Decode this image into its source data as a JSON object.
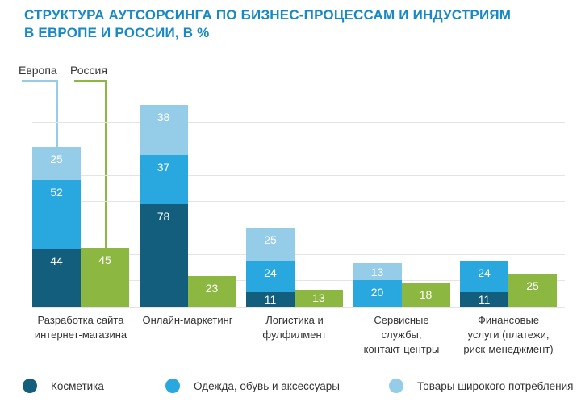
{
  "title": {
    "lines": [
      "СТРУКТУРА АУТСОРСИНГА ПО БИЗНЕС-ПРОЦЕССАМ И ИНДУСТРИЯМ",
      "В ЕВРОПЕ И РОССИИ, В %"
    ]
  },
  "annotations": {
    "europe_label": "Европа",
    "russia_label": "Россия"
  },
  "colors": {
    "cosmetics": "#125e7c",
    "apparel": "#29a7df",
    "fmcg": "#95cde9",
    "russia": "#8cb842",
    "title": "#1789c6",
    "grid": "#e4e4e4",
    "text": "#333333",
    "value_label": "#ffffff"
  },
  "legend": [
    {
      "label": "Косметика",
      "color_key": "cosmetics"
    },
    {
      "label": "Одежда, обувь и аксессуары",
      "color_key": "apparel"
    },
    {
      "label": "Товары широкого потребления",
      "color_key": "fmcg"
    }
  ],
  "chart_data": {
    "type": "bar",
    "variant": "grouped-stacked-column",
    "title": "Структура аутсорсинга по бизнес-процессам и индустриям в Европе и России, в %",
    "unit": "%",
    "grid": {
      "interval": 20,
      "max": 140,
      "visible": true
    },
    "legend_position": "bottom",
    "groups": [
      "Европа",
      "Россия"
    ],
    "categories": [
      "Разработка сайта интернет-магазина",
      "Онлайн-маркетинг",
      "Логистика и фулфилмент",
      "Сервисные службы, контакт-центры",
      "Финансовые услуги (платежи, риск-менеджмент)"
    ],
    "category_display": [
      "Разработка сайта\nинтернет-магазина",
      "Онлайн-маркетинг",
      "Логистика и\nфулфилмент",
      "Сервисные\nслужбы,\nконтакт-центры",
      "Финансовые\nуслуги (платежи,\nриск-менеджмент)"
    ],
    "europe_series": [
      {
        "name": "Косметика",
        "color_key": "cosmetics",
        "values": [
          44,
          78,
          11,
          null,
          11
        ]
      },
      {
        "name": "Одежда, обувь и аксессуары",
        "color_key": "apparel",
        "values": [
          52,
          37,
          24,
          20,
          24
        ]
      },
      {
        "name": "Товары широкого потребления",
        "color_key": "fmcg",
        "values": [
          25,
          38,
          25,
          13,
          null
        ]
      }
    ],
    "russia_series": {
      "name": "Россия",
      "color_key": "russia",
      "values": [
        45,
        23,
        13,
        18,
        25
      ]
    }
  }
}
